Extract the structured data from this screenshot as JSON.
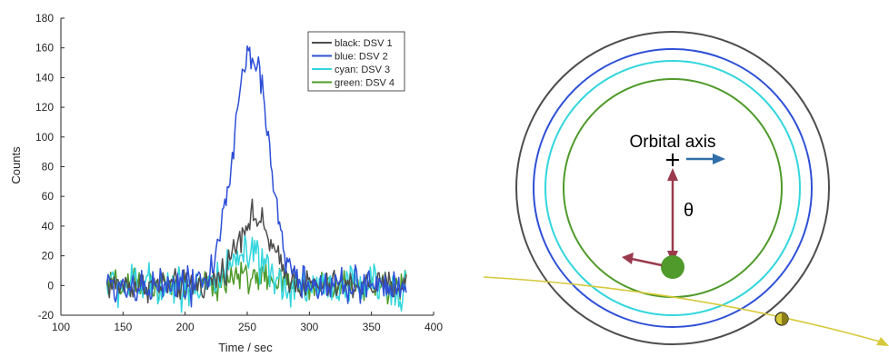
{
  "chart_data": {
    "type": "line",
    "xlabel": "Time / sec",
    "ylabel": "Counts",
    "xlim": [
      100,
      400
    ],
    "ylim": [
      -20,
      180
    ],
    "xticks": [
      100,
      150,
      200,
      250,
      300,
      350,
      400
    ],
    "yticks": [
      -20,
      0,
      20,
      40,
      60,
      80,
      100,
      120,
      140,
      160,
      180
    ],
    "grid": false,
    "legend_position": "top-right",
    "x_range": [
      137,
      378
    ],
    "series": [
      {
        "name": "black: DSV 1",
        "color": "#4d4d4d",
        "peak_time": 255,
        "peak_value": 46,
        "width": 14,
        "noise": 5
      },
      {
        "name": "blue: DSV 2",
        "color": "#2e4fd6",
        "peak_time": 253,
        "peak_value": 158,
        "width": 14,
        "noise": 6
      },
      {
        "name": "cyan: DSV 3",
        "color": "#33d6dd",
        "peak_time": 250,
        "peak_value": 20,
        "width": 12,
        "noise": 7
      },
      {
        "name": "green: DSV 4",
        "color": "#4f9a2a",
        "peak_time": 250,
        "peak_value": 7,
        "width": 15,
        "noise": 5
      }
    ]
  },
  "diagram": {
    "orbital_axis_label": "Orbital axis",
    "angle_label": "θ",
    "ring_colors": [
      "#4d4d4d",
      "#2e4fd6",
      "#33d6dd",
      "#4f9a2a"
    ],
    "arrow_color_red": "#9b3a4e",
    "arrow_color_blue": "#2f6ea8",
    "green_dot_color": "#4f9a2a",
    "trajectory_color": "#d6c93a"
  }
}
